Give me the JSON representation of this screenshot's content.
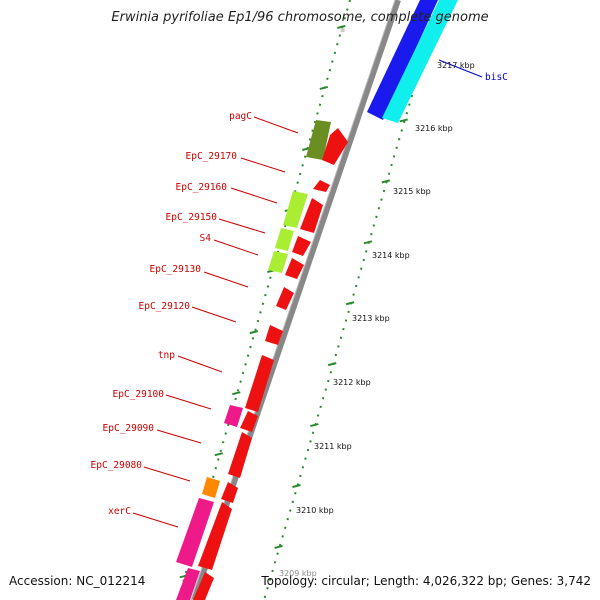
{
  "title": "Erwinia pyrifoliae Ep1/96 chromosome, complete genome",
  "footer": {
    "accession": "Accession: NC_012214",
    "topology": "Topology: circular; Length: 4,026,322 bp; Genes: 3,742"
  },
  "colors": {
    "backbone": "#888888",
    "tick_mark": "#2a8a2a",
    "label_red": "#cc0000",
    "label_blue": "#0000cc",
    "gene_red": "#ee1111",
    "olive": "#6b8e23",
    "lime": "#aaee33",
    "magenta": "#ee1a8a",
    "orange": "#ff8800",
    "blue": "#1a1aee",
    "cyan": "#11eeee"
  },
  "ticks": [
    "3217 kbp",
    "3216 kbp",
    "3215 kbp",
    "3214 kbp",
    "3213 kbp",
    "3212 kbp",
    "3211 kbp",
    "3210 kbp",
    "3209 kbp"
  ],
  "gene_labels": [
    "bisC",
    "pagC",
    "EpC_29170",
    "EpC_29160",
    "EpC_29150",
    "S4",
    "EpC_29130",
    "EpC_29120",
    "tnp",
    "EpC_29100",
    "EpC_29090",
    "EpC_29080",
    "xerC"
  ]
}
